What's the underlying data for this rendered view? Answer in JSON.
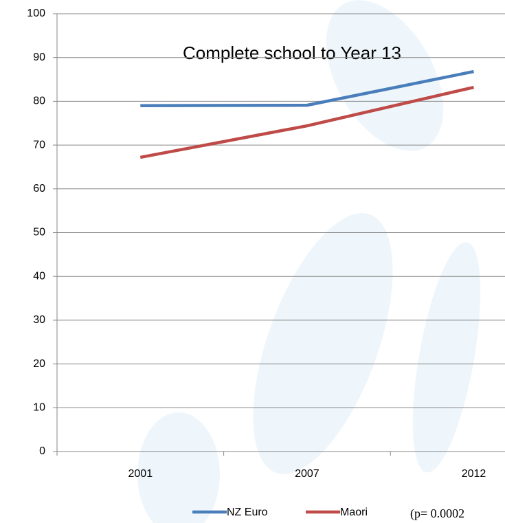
{
  "chart_data": {
    "type": "line",
    "title": "Complete  school to Year 13",
    "categories": [
      "2001",
      "2007",
      "2012"
    ],
    "series": [
      {
        "name": "NZ Euro",
        "color": "#4a7ebb",
        "values": [
          79,
          79.1,
          86.8
        ]
      },
      {
        "name": "Maori",
        "color": "#be4b48",
        "values": [
          67.2,
          74.4,
          83.2
        ]
      }
    ],
    "ylim": [
      0,
      100
    ],
    "yticks": [
      0,
      10,
      20,
      30,
      40,
      50,
      60,
      70,
      80,
      90,
      100
    ],
    "grid": true,
    "legend": "bottom",
    "annotation": "(p= 0.0002"
  }
}
